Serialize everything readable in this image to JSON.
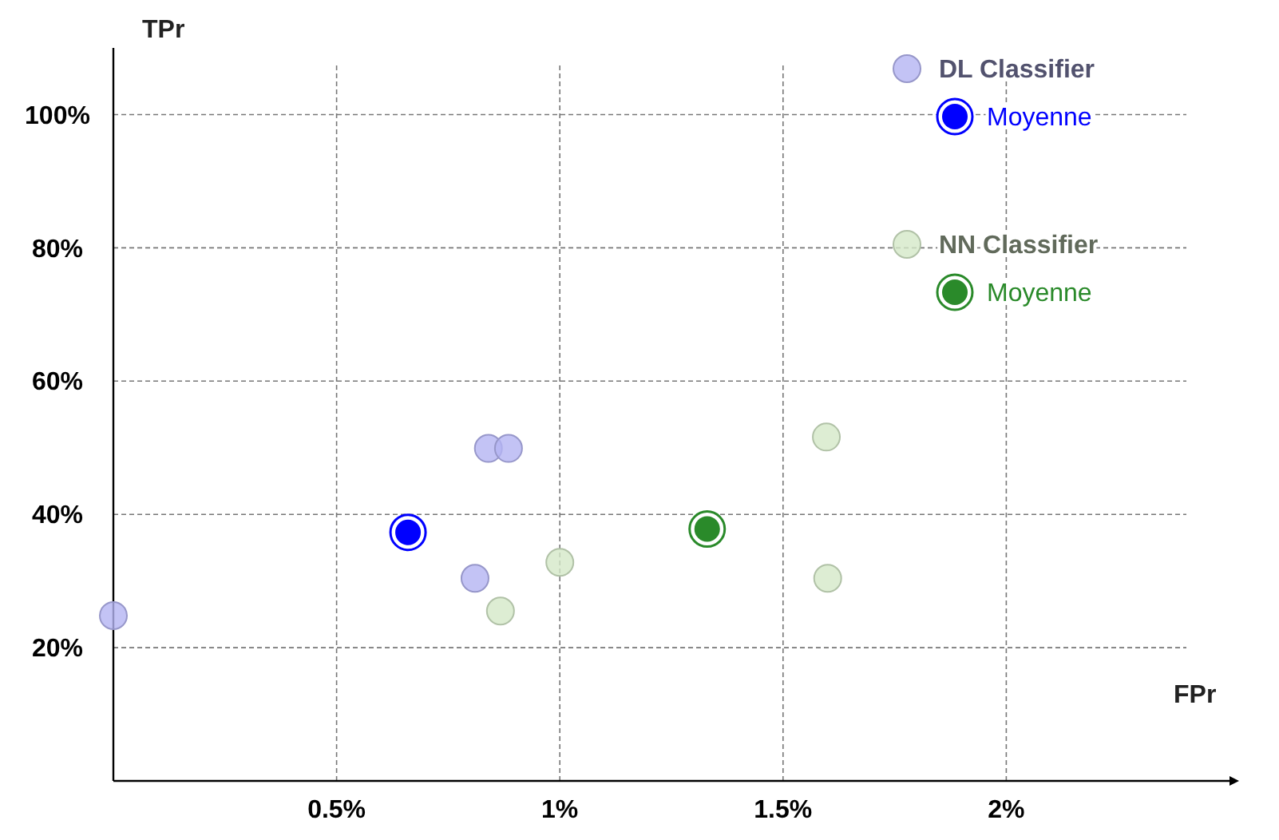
{
  "chart_data": {
    "type": "scatter",
    "xlabel": "FPr",
    "ylabel": "TPr",
    "xlim": [
      0,
      2.5
    ],
    "ylim": [
      0,
      110
    ],
    "xticks": [
      {
        "value": 0.5,
        "label": "0.5%"
      },
      {
        "value": 1,
        "label": "1%"
      },
      {
        "value": 1.5,
        "label": "1.5%"
      },
      {
        "value": 2,
        "label": "2%"
      }
    ],
    "yticks": [
      {
        "value": 20,
        "label": "20%"
      },
      {
        "value": 40,
        "label": "40%"
      },
      {
        "value": 60,
        "label": "60%"
      },
      {
        "value": 80,
        "label": "80%"
      },
      {
        "value": 100,
        "label": "100%"
      }
    ],
    "grid": true,
    "legend": "top right",
    "marker": "circle",
    "series": [
      {
        "name": "DL Classifier",
        "color": "#b4b4f2",
        "x": [
          0,
          0.81,
          0.84,
          0.885
        ],
        "values": [
          24.8,
          30.4,
          49.9,
          49.9
        ]
      },
      {
        "name": "Moyenne",
        "color": "#0000ff",
        "x": [
          0.66
        ],
        "values": [
          37.3
        ]
      },
      {
        "name": "NN Classifier",
        "color": "#d4e8c8",
        "x": [
          0.867,
          1.0,
          1.597,
          1.6
        ],
        "values": [
          25.5,
          32.8,
          51.6,
          30.4
        ]
      },
      {
        "name": "Moyenne",
        "color": "#2a8a2a",
        "x": [
          1.33
        ],
        "values": [
          37.8
        ]
      }
    ]
  }
}
